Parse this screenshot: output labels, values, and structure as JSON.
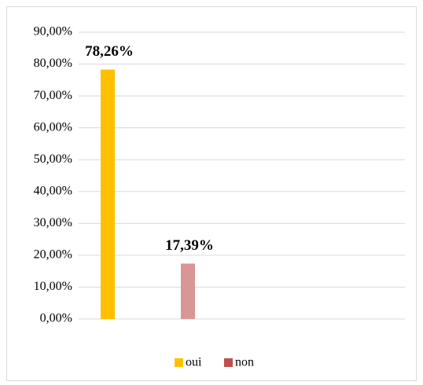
{
  "chart_data": {
    "type": "bar",
    "categories": [
      null
    ],
    "series": [
      {
        "name": "oui",
        "color": "#ffc000",
        "bar_color": "#ffc000",
        "values": [
          78.26
        ],
        "value_labels": [
          "78,26%"
        ]
      },
      {
        "name": "non",
        "color": "#c0504d",
        "bar_color": "#d99694",
        "values": [
          17.39
        ],
        "value_labels": [
          "17,39%"
        ]
      }
    ],
    "ylim": [
      0,
      90
    ],
    "yticks": [
      {
        "value": 0,
        "label": "0,00%"
      },
      {
        "value": 10,
        "label": "10,00%"
      },
      {
        "value": 20,
        "label": "20,00%"
      },
      {
        "value": 30,
        "label": "30,00%"
      },
      {
        "value": 40,
        "label": "40,00%"
      },
      {
        "value": 50,
        "label": "50,00%"
      },
      {
        "value": 60,
        "label": "60,00%"
      },
      {
        "value": 70,
        "label": "70,00%"
      },
      {
        "value": 80,
        "label": "80,00%"
      },
      {
        "value": 90,
        "label": "90,00%"
      }
    ],
    "grid": true,
    "legend": "bottom"
  }
}
